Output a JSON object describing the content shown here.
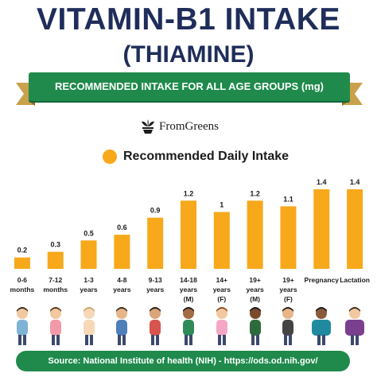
{
  "title": "VITAMIN-B1 INTAKE",
  "subtitle": "(THIAMINE)",
  "banner": "RECOMMENDED INTAKE FOR ALL AGE GROUPS (mg)",
  "brand": "FromGreens",
  "source": "Source: National Institute of health (NIH) - https://ods.od.nih.gov/",
  "colors": {
    "bar": "#f7a81b",
    "green": "#1f8a4c",
    "navy": "#1f2d5a",
    "gold": "#c9a14a"
  },
  "chart_data": {
    "type": "bar",
    "legend": "Recommended Daily Intake",
    "legend_position": "top",
    "grid": false,
    "ylim": [
      0,
      1.4
    ],
    "categories": [
      [
        "0-6",
        "months"
      ],
      [
        "7-12",
        "months"
      ],
      [
        "1-3",
        "years"
      ],
      [
        "4-8",
        "years"
      ],
      [
        "9-13",
        "years"
      ],
      [
        "14-18",
        "years",
        "(M)"
      ],
      [
        "14+",
        "years",
        "(F)"
      ],
      [
        "19+",
        "years",
        "(M)"
      ],
      [
        "19+",
        "years",
        "(F)"
      ],
      [
        "Pregnancy"
      ],
      [
        "Lactation"
      ]
    ],
    "values": [
      0.2,
      0.3,
      0.5,
      0.6,
      0.9,
      1.2,
      1,
      1.2,
      1.1,
      1.4,
      1.4
    ],
    "value_labels": [
      "0.2",
      "0.3",
      "0.5",
      "0.6",
      "0.9",
      "1.2",
      "1",
      "1.2",
      "1.1",
      "1.4",
      "1.4"
    ]
  },
  "people_icons": [
    "mother-baby-icon",
    "mother-infant-icon",
    "toddler-icon",
    "child-icon",
    "preteen-icon",
    "teen-boy-icon",
    "teen-girl-icon",
    "man-icon",
    "woman-icon",
    "pregnant-woman-icon",
    "nursing-mother-icon"
  ]
}
